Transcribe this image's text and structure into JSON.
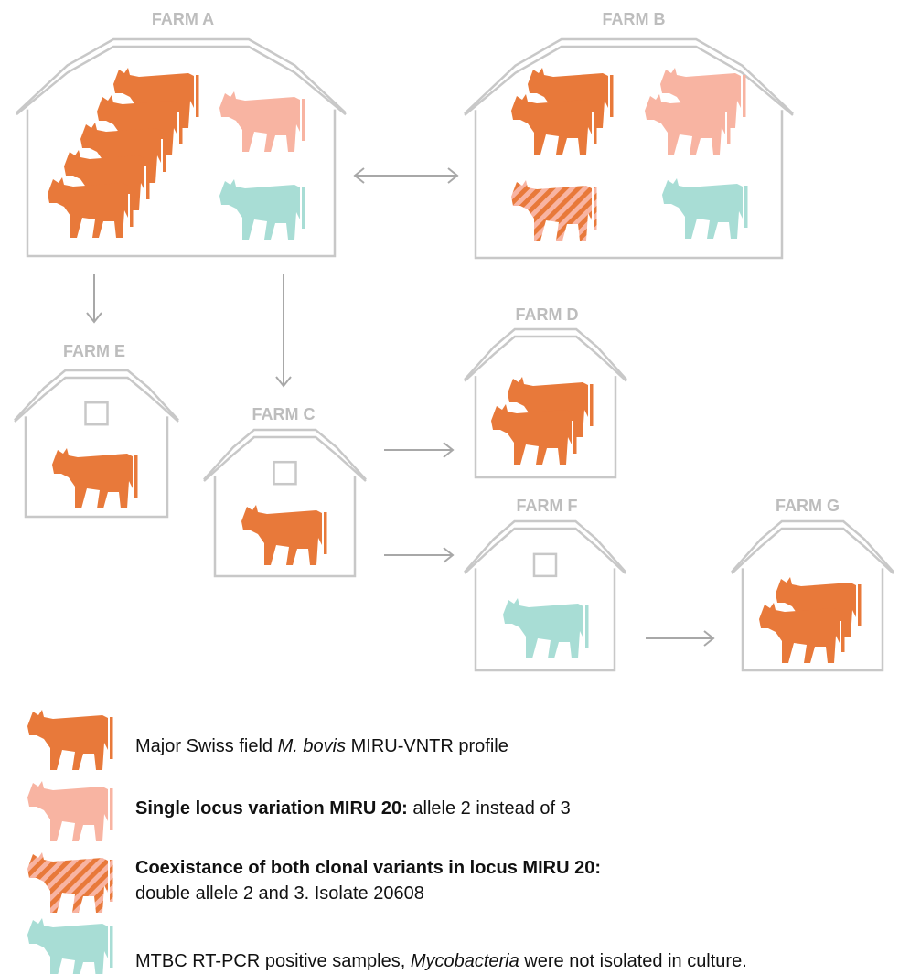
{
  "farms": [
    {
      "label": "FARM A"
    },
    {
      "label": "FARM B"
    },
    {
      "label": "FARM E"
    },
    {
      "label": "FARM C"
    },
    {
      "label": "FARM D"
    },
    {
      "label": "FARM F"
    },
    {
      "label": "FARM G"
    }
  ],
  "legend": [
    {
      "parts": [
        "Major Swiss field ",
        "M. bovis",
        " MIRU-VNTR profile"
      ]
    },
    {
      "parts": [
        "Single locus variation MIRU 20:",
        " allele 2 instead of 3"
      ]
    },
    {
      "parts": [
        "Coexistance of both clonal variants in locus MIRU 20:",
        "double allele 2 and 3. Isolate 20608"
      ]
    },
    {
      "parts": [
        "MTBC RT-PCR positive samples, ",
        "Mycobacteria",
        " were not isolated in culture."
      ]
    }
  ]
}
